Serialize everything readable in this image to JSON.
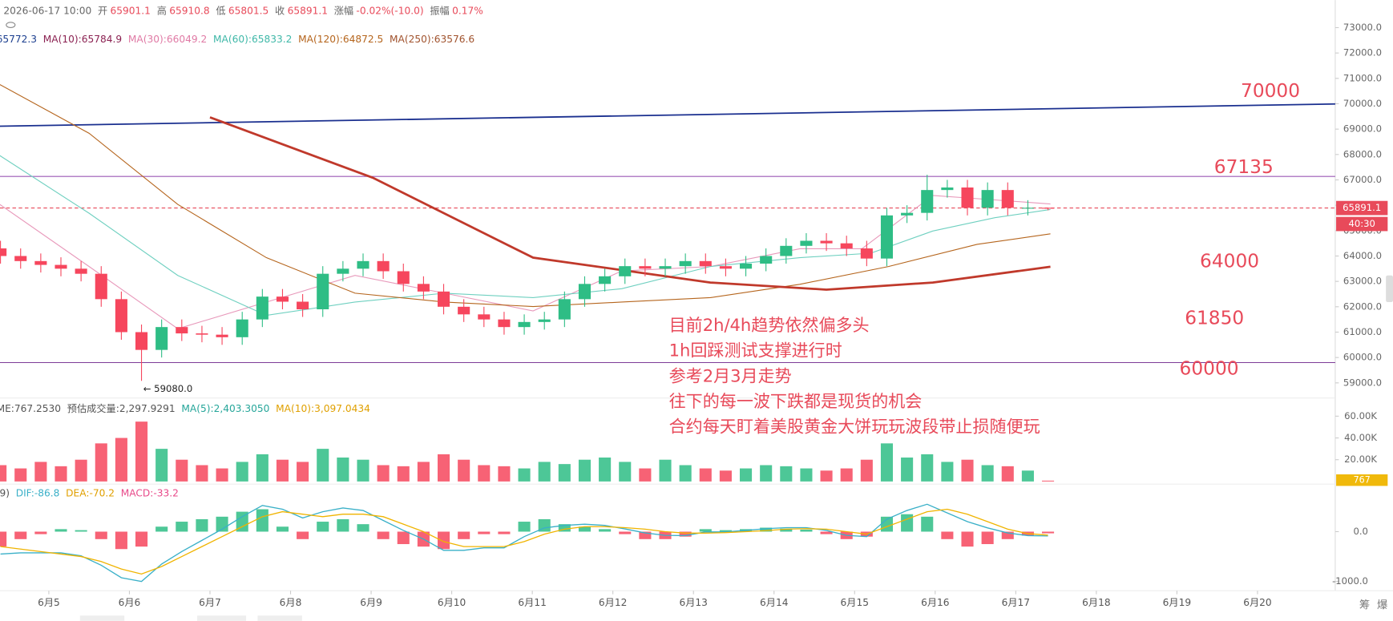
{
  "header": {
    "datetime": "2026-06-17 10:00",
    "items": [
      {
        "label": "开",
        "value": "65901.1"
      },
      {
        "label": "高",
        "value": "65910.8"
      },
      {
        "label": "低",
        "value": "65801.5"
      },
      {
        "label": "收",
        "value": "65891.1"
      },
      {
        "label": "涨幅",
        "value": "-0.02%(-10.0)"
      },
      {
        "label": "振幅",
        "value": "0.17%"
      }
    ]
  },
  "chart_data": [
    {
      "type": "candlestick",
      "x": [
        4.4,
        4.65,
        4.9,
        5.15,
        5.4,
        5.65,
        5.9,
        6.15,
        6.4,
        6.65,
        6.9,
        7.15,
        7.4,
        7.65,
        7.9,
        8.15,
        8.4,
        8.65,
        8.9,
        9.15,
        9.4,
        9.65,
        9.9,
        10.15,
        10.4,
        10.65,
        10.9,
        11.15,
        11.4,
        11.65,
        11.9,
        12.15,
        12.4,
        12.65,
        12.9,
        13.15,
        13.4,
        13.65,
        13.9,
        14.15,
        14.4,
        14.65,
        14.9,
        15.15,
        15.4,
        15.65,
        15.9,
        16.15,
        16.4,
        16.65,
        16.9,
        17.15,
        17.4
      ],
      "open": [
        64300,
        64000,
        63800,
        63650,
        63500,
        63300,
        62300,
        61000,
        60300,
        61200,
        60950,
        60900,
        60800,
        61500,
        62400,
        62200,
        61900,
        63300,
        63500,
        63800,
        63400,
        62900,
        62600,
        62000,
        61700,
        61500,
        61200,
        61400,
        61500,
        62300,
        62900,
        63200,
        63600,
        63500,
        63600,
        63800,
        63600,
        63500,
        63700,
        64000,
        64400,
        64600,
        64500,
        64300,
        63900,
        65600,
        65700,
        66600,
        66700,
        65900,
        66600,
        65900,
        65901.1
      ],
      "high": [
        64600,
        64300,
        64100,
        63950,
        63800,
        63600,
        62600,
        61300,
        61500,
        61500,
        61250,
        61200,
        61800,
        62700,
        62700,
        62500,
        63600,
        63800,
        64100,
        64100,
        63700,
        63200,
        62900,
        62300,
        62000,
        61800,
        61700,
        61800,
        62600,
        63200,
        63500,
        63900,
        63900,
        63900,
        64100,
        64100,
        63900,
        64000,
        64300,
        64700,
        64900,
        64900,
        64800,
        64600,
        65900,
        66000,
        67200,
        67000,
        67000,
        66900,
        66900,
        66200,
        65910.8
      ],
      "low": [
        63700,
        63500,
        63350,
        63200,
        63000,
        62000,
        60700,
        59080,
        60000,
        60650,
        60600,
        60500,
        60500,
        61200,
        61900,
        61600,
        61600,
        63000,
        63200,
        63100,
        62600,
        62300,
        61700,
        61400,
        61200,
        60900,
        60900,
        61100,
        61200,
        62000,
        62600,
        62900,
        63200,
        63200,
        63300,
        63300,
        63200,
        63200,
        63400,
        63700,
        64100,
        64200,
        64000,
        63600,
        63600,
        65300,
        65400,
        66300,
        65600,
        65600,
        65600,
        65600,
        65801.5
      ],
      "close": [
        64000,
        63800,
        63650,
        63500,
        63300,
        62300,
        61000,
        60300,
        61200,
        60950,
        60900,
        60800,
        61500,
        62400,
        62200,
        61900,
        63300,
        63500,
        63800,
        63400,
        62900,
        62600,
        62000,
        61700,
        61500,
        61200,
        61400,
        61500,
        62300,
        62900,
        63200,
        63600,
        63500,
        63600,
        63800,
        63600,
        63500,
        63700,
        64000,
        64400,
        64600,
        64500,
        64300,
        63900,
        65600,
        65700,
        66600,
        66700,
        65900,
        66600,
        65900,
        65901.1,
        65891.1
      ],
      "up_color": "#2ebd85",
      "down_color": "#f6465d",
      "xlim": [
        4.394,
        20.965
      ],
      "xticks": [
        {
          "value": 5,
          "label": "6月5"
        },
        {
          "value": 6,
          "label": "6月6"
        },
        {
          "value": 7,
          "label": "6月7"
        },
        {
          "value": 8,
          "label": "6月8"
        },
        {
          "value": 9,
          "label": "6月9"
        },
        {
          "value": 10,
          "label": "6月10"
        },
        {
          "value": 11,
          "label": "6月11"
        },
        {
          "value": 12,
          "label": "6月12"
        },
        {
          "value": 13,
          "label": "6月13"
        },
        {
          "value": 14,
          "label": "6月14"
        },
        {
          "value": 15,
          "label": "6月15"
        },
        {
          "value": 16,
          "label": "6月16"
        },
        {
          "value": 17,
          "label": "6月17"
        },
        {
          "value": 18,
          "label": "6月18"
        },
        {
          "value": 19,
          "label": "6月19"
        },
        {
          "value": 20,
          "label": "6月20"
        }
      ],
      "ylim": [
        58405,
        74085
      ],
      "yticks": [
        {
          "value": 59000,
          "label": "59000.0"
        },
        {
          "value": 60000,
          "label": "60000.0"
        },
        {
          "value": 61000,
          "label": "61000.0"
        },
        {
          "value": 62000,
          "label": "62000.0"
        },
        {
          "value": 63000,
          "label": "63000.0"
        },
        {
          "value": 64000,
          "label": "64000.0"
        },
        {
          "value": 65000,
          "label": "65000.0"
        },
        {
          "value": 66000,
          "label": "66000.0"
        },
        {
          "value": 67000,
          "label": "67000.0"
        },
        {
          "value": 68000,
          "label": "68000.0"
        },
        {
          "value": 69000,
          "label": "69000.0"
        },
        {
          "value": 70000,
          "label": "70000.0"
        },
        {
          "value": 71000,
          "label": "71000.0"
        },
        {
          "value": 72000,
          "label": "72000.0"
        },
        {
          "value": 73000,
          "label": "73000.0"
        }
      ],
      "ma_legend": [
        {
          "text": "65772.3",
          "color": "#1c3f8f"
        },
        {
          "text": "MA(10):65784.9",
          "color": "#8b2252"
        },
        {
          "text": "MA(30):66049.2",
          "color": "#e07aa5"
        },
        {
          "text": "MA(60):65833.2",
          "color": "#3fb8a8"
        },
        {
          "text": "MA(120):64872.5",
          "color": "#b5651d"
        },
        {
          "text": "MA(250):63576.6",
          "color": "#a0522d"
        }
      ],
      "ma_lines": [
        {
          "color": "#e899bb",
          "width": 1,
          "x": [
            4.39,
            5.5,
            6.6,
            7.7,
            8.8,
            9.91,
            11.01,
            12.11,
            13.21,
            14.32,
            15.09,
            15.97,
            16.74,
            17.43
          ],
          "values": [
            66035,
            63585,
            61135,
            62185,
            63235,
            62535,
            61835,
            63410,
            63585,
            64285,
            64285,
            66385,
            66210,
            66049.2
          ]
        },
        {
          "color": "#6fd0c0",
          "width": 1,
          "x": [
            4.39,
            5.5,
            6.6,
            7.7,
            8.8,
            9.91,
            11.01,
            12.11,
            13.21,
            14.32,
            15.2,
            15.97,
            16.74,
            17.43
          ],
          "values": [
            67960,
            65685,
            63235,
            61660,
            62185,
            62535,
            62360,
            62710,
            63585,
            63935,
            64110,
            64985,
            65510,
            65833.2
          ]
        },
        {
          "color": "#b5651d",
          "width": 1,
          "x": [
            4.39,
            5.5,
            6.6,
            7.7,
            8.8,
            9.91,
            11.01,
            12.11,
            13.21,
            14.32,
            15.42,
            16.52,
            17.43
          ],
          "values": [
            70760,
            68835,
            66035,
            63935,
            62535,
            62185,
            62010,
            62185,
            62360,
            62885,
            63585,
            64460,
            64872.5
          ]
        },
        {
          "color": "#c0392b",
          "width": 2.5,
          "x": [
            7.0,
            9.02,
            11.01,
            13.21,
            14.65,
            15.97,
            17.43
          ],
          "values": [
            69465,
            67085,
            63935,
            62955,
            62675,
            62955,
            63576.6
          ]
        }
      ],
      "trendline": {
        "color": "#1a2f8f",
        "x": [
          4.394,
          20.965
        ],
        "values": [
          69115,
          69990
        ]
      },
      "hlines": [
        {
          "value": 67135,
          "color": "#9b59b6"
        },
        {
          "value": 59800,
          "color": "#7d3c98"
        }
      ],
      "last_price": {
        "value": 65891.1,
        "label": "65891.1",
        "countdown": "40:30",
        "color": "#e84a5a"
      },
      "low_marker": {
        "value": 59080,
        "x": 6.15,
        "label": "← 59080.0"
      },
      "annotations": [
        "70000",
        "67135",
        "64000",
        "61850",
        "60000"
      ],
      "note": [
        "目前2h/4h趋势依然偏多头",
        "1h回踩测试支撑进行时",
        "参考2月3月走势",
        "往下的每一波下跌都是现货的机会",
        "合约每天盯着美股黄金大饼玩玩波段带止损随便玩"
      ]
    },
    {
      "type": "bar",
      "values": [
        15000,
        12000,
        18000,
        14000,
        20000,
        35000,
        40000,
        55000,
        30000,
        20000,
        15000,
        12000,
        18000,
        25000,
        20000,
        18000,
        30000,
        22000,
        20000,
        15000,
        14000,
        18000,
        25000,
        20000,
        15000,
        14000,
        12000,
        18000,
        16000,
        20000,
        22000,
        18000,
        12000,
        20000,
        15000,
        12000,
        10000,
        12000,
        15000,
        14000,
        12000,
        10000,
        12000,
        20000,
        35000,
        22000,
        25000,
        18000,
        20000,
        15000,
        14000,
        10000,
        767
      ],
      "ylim": [
        0,
        71000
      ],
      "yticks": [
        {
          "value": 20000,
          "label": "20.00K"
        },
        {
          "value": 40000,
          "label": "40.00K"
        },
        {
          "value": 60000,
          "label": "60.00K"
        }
      ],
      "legend": [
        {
          "text": "ME:767.2530",
          "color": "#555"
        },
        {
          "text": "预估成交量:2,297.9291",
          "color": "#555"
        },
        {
          "text": "MA(5):2,403.3050",
          "color": "#26a69a"
        },
        {
          "text": "MA(10):3,097.0434",
          "color": "#e0a000"
        }
      ],
      "last": {
        "value": 767,
        "label": "767",
        "color": "#f0b90b"
      }
    },
    {
      "type": "macd",
      "hist": [
        -300,
        -150,
        -50,
        50,
        30,
        -150,
        -350,
        -300,
        100,
        200,
        250,
        300,
        400,
        450,
        100,
        -150,
        200,
        250,
        150,
        -150,
        -250,
        -300,
        -350,
        -150,
        -50,
        -50,
        200,
        250,
        150,
        100,
        50,
        -50,
        -150,
        -150,
        -100,
        50,
        30,
        50,
        80,
        60,
        40,
        -50,
        -150,
        -100,
        300,
        350,
        300,
        -150,
        -300,
        -250,
        -150,
        -80,
        -33.2
      ],
      "dif": [
        -450,
        -425,
        -425,
        -425,
        -485,
        -675,
        -925,
        -1000,
        -650,
        -400,
        -175,
        50,
        300,
        525,
        450,
        275,
        400,
        475,
        425,
        225,
        25,
        -150,
        -375,
        -375,
        -325,
        -325,
        -100,
        75,
        125,
        150,
        125,
        55,
        -25,
        -75,
        -80,
        -5,
        -5,
        25,
        60,
        80,
        80,
        25,
        -75,
        -100,
        250,
        425,
        550,
        375,
        200,
        75,
        -25,
        -80,
        -86.8
      ],
      "dea": [
        -300,
        -350,
        -400,
        -450,
        -500,
        -600,
        -750,
        -850,
        -700,
        -500,
        -300,
        -100,
        100,
        300,
        400,
        350,
        300,
        350,
        350,
        300,
        150,
        0,
        -200,
        -300,
        -300,
        -300,
        -200,
        -50,
        50,
        100,
        100,
        80,
        50,
        0,
        -30,
        -30,
        -20,
        0,
        20,
        50,
        60,
        50,
        0,
        -50,
        100,
        250,
        400,
        450,
        350,
        200,
        50,
        -40,
        -70.2
      ],
      "dif_color": "#3ab0c8",
      "dea_color": "#f0b400",
      "up_color": "#2ebd85",
      "down_color": "#f6465d",
      "ylim": [
        -1150,
        900
      ],
      "yticks": [
        {
          "value": 0,
          "label": "0.0"
        },
        {
          "value": -1000,
          "label": "-1000.0"
        }
      ],
      "legend": [
        {
          "text": ",9)",
          "color": "#555"
        },
        {
          "text": "DIF:-86.8",
          "color": "#3ab0c8"
        },
        {
          "text": "DEA:-70.2",
          "color": "#e0a000"
        },
        {
          "text": "MACD:-33.2",
          "color": "#e84a8a"
        }
      ]
    }
  ],
  "footer": {
    "icons": [
      "筹",
      "爆"
    ]
  }
}
